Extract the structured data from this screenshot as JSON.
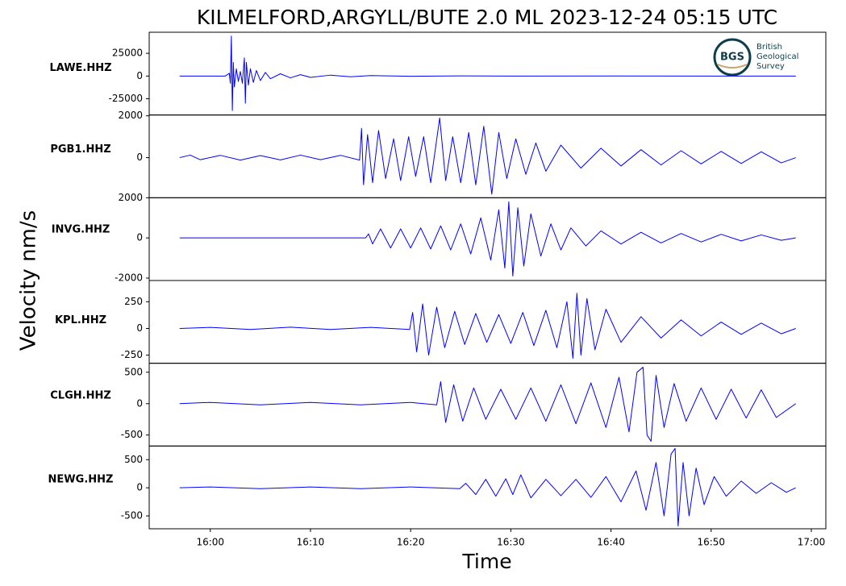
{
  "logo": {
    "abbr": "BGS",
    "lines": [
      "British",
      "Geological",
      "Survey"
    ]
  },
  "chart_data": [
    {
      "type": "line",
      "title": "KILMELFORD,ARGYLL/BUTE 2.0 ML   2023-12-24 05:15 UTC",
      "y_label": "Velocity nm/s",
      "xlim": [
        953.9,
        1021.45
      ],
      "ylim": [
        -42900,
        48200
      ],
      "yticks": [
        -25000,
        0,
        25000
      ],
      "x": [
        956.94,
        961.5,
        961.9,
        962.0,
        962.1,
        962.2,
        962.3,
        962.4,
        962.6,
        962.8,
        963.0,
        963.2,
        963.4,
        963.5,
        963.6,
        963.8,
        964.0,
        964.3,
        964.6,
        965,
        965.5,
        966,
        967,
        968,
        969,
        970,
        972,
        974,
        976,
        980,
        985,
        990,
        1000,
        1010,
        1018.45
      ],
      "series": [
        {
          "name": "LAWE.HHZ",
          "color": "#0000ff",
          "values": [
            0,
            0,
            3000,
            -8000,
            44000,
            -38000,
            15000,
            -12000,
            8000,
            -6000,
            5000,
            -8000,
            20000,
            -30000,
            15000,
            -10000,
            8000,
            -7000,
            6000,
            -5000,
            4000,
            -3000,
            2500,
            -2000,
            1500,
            -1500,
            1000,
            -800,
            500,
            -300,
            200,
            -100,
            100,
            -50,
            0
          ]
        }
      ]
    },
    {
      "type": "line",
      "xlim": [
        953.9,
        1021.45
      ],
      "ylim": [
        -1920,
        2040
      ],
      "yticks": [
        0,
        2000
      ],
      "x": [
        956.94,
        958,
        959,
        961,
        963,
        965,
        967,
        969,
        971,
        973,
        974.9,
        975.1,
        975.3,
        975.7,
        976.2,
        976.8,
        977.5,
        978.3,
        979,
        979.8,
        980.5,
        981.3,
        982,
        982.9,
        983.5,
        984.2,
        985,
        985.8,
        986.5,
        987.3,
        988.1,
        988.8,
        989.6,
        990.5,
        991.5,
        992.5,
        993.5,
        995,
        997,
        999,
        1001,
        1003,
        1005,
        1007,
        1009,
        1011,
        1013,
        1015,
        1017,
        1018.45
      ],
      "series": [
        {
          "name": "PGB1.HHZ",
          "color": "#0000ff",
          "values": [
            0,
            120,
            -100,
            110,
            -120,
            100,
            -110,
            120,
            -100,
            110,
            -120,
            1400,
            -1300,
            1100,
            -1200,
            1300,
            -1000,
            900,
            -1100,
            1000,
            -900,
            1000,
            -1200,
            1900,
            -1100,
            1000,
            -1200,
            1200,
            -1300,
            1500,
            -1750,
            1200,
            -1000,
            900,
            -800,
            700,
            -650,
            600,
            -500,
            450,
            -400,
            380,
            -350,
            330,
            -300,
            300,
            -280,
            280,
            -250,
            0
          ]
        }
      ]
    },
    {
      "type": "line",
      "xlim": [
        953.9,
        1021.45
      ],
      "ylim": [
        -2120,
        2000
      ],
      "yticks": [
        -2000,
        0,
        2000
      ],
      "x": [
        956.94,
        975.5,
        975.8,
        976.2,
        977,
        978,
        979,
        980,
        981,
        982,
        983,
        984,
        985,
        986,
        987,
        988,
        988.8,
        989.4,
        989.8,
        990.2,
        990.7,
        991.3,
        992,
        993,
        994,
        995,
        996,
        997.5,
        999,
        1001,
        1003,
        1005,
        1007,
        1009,
        1011,
        1013,
        1015,
        1017,
        1018.45
      ],
      "series": [
        {
          "name": "INVG.HHZ",
          "color": "#0000ff",
          "values": [
            0,
            0,
            200,
            -300,
            450,
            -500,
            450,
            -500,
            500,
            -550,
            600,
            -600,
            700,
            -800,
            1000,
            -1100,
            1400,
            -1500,
            1800,
            -1900,
            1500,
            -1400,
            1200,
            -900,
            700,
            -600,
            500,
            -400,
            350,
            -300,
            280,
            -250,
            220,
            -200,
            180,
            -150,
            150,
            -120,
            0
          ]
        }
      ]
    },
    {
      "type": "line",
      "xlim": [
        953.9,
        1021.45
      ],
      "ylim": [
        -326,
        449
      ],
      "yticks": [
        -250,
        0,
        250
      ],
      "x": [
        956.94,
        960,
        964,
        968,
        972,
        976,
        979.9,
        980.2,
        980.6,
        981.2,
        981.8,
        982.6,
        983.4,
        984.4,
        985.4,
        986.5,
        987.6,
        988.8,
        990,
        991.2,
        992.3,
        993.5,
        994.6,
        995.6,
        996.2,
        996.6,
        997,
        997.6,
        998.4,
        999.5,
        1001,
        1003,
        1005,
        1007,
        1009,
        1011,
        1013,
        1015,
        1017,
        1018.45
      ],
      "series": [
        {
          "name": "KPL.HHZ",
          "color": "#0000ff",
          "values": [
            0,
            10,
            -10,
            12,
            -10,
            10,
            -10,
            150,
            -220,
            230,
            -250,
            200,
            -180,
            160,
            -150,
            140,
            -130,
            130,
            -140,
            150,
            -160,
            170,
            -180,
            250,
            -280,
            330,
            -250,
            280,
            -200,
            180,
            -130,
            110,
            -90,
            80,
            -70,
            60,
            -55,
            50,
            -50,
            0
          ]
        }
      ]
    },
    {
      "type": "line",
      "xlim": [
        953.9,
        1021.45
      ],
      "ylim": [
        -675,
        643
      ],
      "yticks": [
        -500,
        0,
        500
      ],
      "x": [
        956.94,
        960,
        965,
        970,
        975,
        980,
        982.6,
        983,
        983.5,
        984.3,
        985.2,
        986.3,
        987.5,
        989,
        990.5,
        992,
        993.5,
        995,
        996.5,
        998,
        999.5,
        1000.8,
        1001.8,
        1002.6,
        1003.2,
        1003.6,
        1004,
        1004.5,
        1005.3,
        1006.3,
        1007.5,
        1009,
        1010.5,
        1012,
        1013.5,
        1015,
        1016.5,
        1018.45
      ],
      "series": [
        {
          "name": "CLGH.HHZ",
          "color": "#0000ff",
          "values": [
            0,
            20,
            -20,
            20,
            -20,
            20,
            -20,
            350,
            -300,
            300,
            -280,
            250,
            -250,
            230,
            -250,
            250,
            -280,
            300,
            -320,
            330,
            -380,
            420,
            -450,
            500,
            580,
            -500,
            -600,
            450,
            -380,
            320,
            -280,
            250,
            -250,
            230,
            -230,
            220,
            -220,
            0
          ]
        }
      ]
    },
    {
      "type": "line",
      "x_label": "Time",
      "xlim": [
        953.9,
        1021.45
      ],
      "ylim": [
        -729,
        743
      ],
      "yticks": [
        -500,
        0,
        500
      ],
      "xticks": [
        {
          "value": 960,
          "label": "16:00"
        },
        {
          "value": 970,
          "label": "16:10"
        },
        {
          "value": 980,
          "label": "16:20"
        },
        {
          "value": 990,
          "label": "16:30"
        },
        {
          "value": 1000,
          "label": "16:40"
        },
        {
          "value": 1010,
          "label": "16:50"
        },
        {
          "value": 1020,
          "label": "17:00"
        }
      ],
      "x": [
        956.94,
        960,
        965,
        970,
        975,
        980,
        984.9,
        985.5,
        986.5,
        987.5,
        988.5,
        989.5,
        990.2,
        991,
        992,
        993.5,
        995,
        996.5,
        998,
        999.5,
        1001,
        1002.5,
        1003.5,
        1004.5,
        1005.3,
        1006,
        1006.4,
        1006.7,
        1007.2,
        1007.8,
        1008.5,
        1009.3,
        1010.3,
        1011.5,
        1013,
        1014.5,
        1016,
        1017.5,
        1018.45
      ],
      "series": [
        {
          "name": "NEWG.HHZ",
          "color": "#0000ff",
          "values": [
            0,
            15,
            -15,
            15,
            -15,
            15,
            -15,
            80,
            -120,
            150,
            -150,
            160,
            -120,
            230,
            -180,
            150,
            -140,
            150,
            -170,
            200,
            -250,
            300,
            -400,
            450,
            -500,
            600,
            700,
            -680,
            450,
            -500,
            350,
            -300,
            200,
            -150,
            120,
            -100,
            90,
            -80,
            0
          ]
        }
      ]
    }
  ]
}
